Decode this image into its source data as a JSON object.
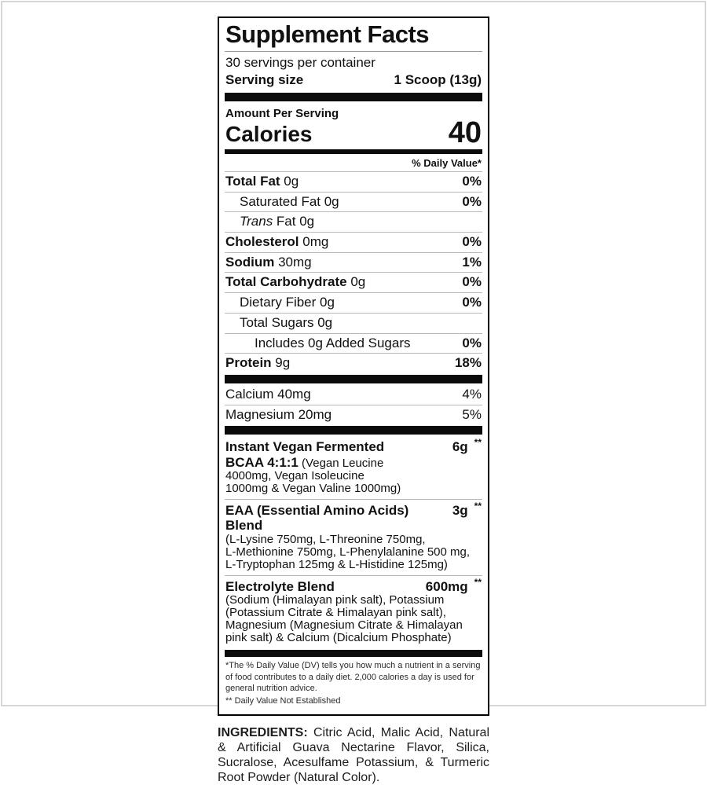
{
  "page": {
    "background": "#ffffff",
    "frame_border_color": "#d6d6d6",
    "panel_border_color": "#000000"
  },
  "label": {
    "title": "Supplement Facts",
    "servings_per_container": "30 servings per container",
    "serving_size_label": "Serving size",
    "serving_size_value": "1 Scoop (13g)",
    "amount_per_serving": "Amount Per Serving",
    "calories_label": "Calories",
    "calories_value": "40",
    "daily_value_header": "% Daily Value*",
    "nutrient_rows": [
      {
        "bold": "Total Fat",
        "rest": "0g",
        "dv": "0%",
        "indent": 0
      },
      {
        "rest": "Saturated Fat 0g",
        "dv": "0%",
        "indent": 1
      },
      {
        "italic": "Trans",
        "rest": "Fat 0g",
        "dv": "",
        "indent": 1
      },
      {
        "bold": "Cholesterol",
        "rest": "0mg",
        "dv": "0%",
        "indent": 0
      },
      {
        "bold": "Sodium",
        "rest": "30mg",
        "dv": "1%",
        "indent": 0
      },
      {
        "bold": "Total Carbohydrate",
        "rest": "0g",
        "dv": "0%",
        "indent": 0
      },
      {
        "rest": "Dietary Fiber 0g",
        "dv": "0%",
        "indent": 1
      },
      {
        "rest": "Total Sugars 0g",
        "dv": "",
        "indent": 1
      },
      {
        "rest": "Includes 0g Added Sugars",
        "dv": "0%",
        "indent": 2
      },
      {
        "bold": "Protein",
        "rest": "9g",
        "dv": "18%",
        "indent": 0
      }
    ],
    "mineral_rows": [
      {
        "rest": "Calcium 40mg",
        "dv": "4%"
      },
      {
        "rest": "Magnesium 20mg",
        "dv": "5%"
      }
    ],
    "blends": [
      {
        "name": "Instant Vegan Fermented",
        "amount": "6g",
        "dv": "**",
        "sub_bold": "BCAA 4:1:1",
        "sub_rest": " (Vegan Leucine",
        "desc_lines": [
          "4000mg, Vegan Isoleucine",
          "1000mg & Vegan Valine 1000mg)"
        ]
      },
      {
        "name": "EAA (Essential Amino Acids) Blend",
        "amount": "3g",
        "dv": "**",
        "desc_lines": [
          "(L-Lysine 750mg, L-Threonine 750mg,",
          "L-Methionine 750mg, L-Phenylalanine 500 mg,",
          "L-Tryptophan 125mg & L-Histidine 125mg)"
        ]
      },
      {
        "name": "Electrolyte Blend",
        "amount": "600mg",
        "dv": "**",
        "desc_lines": [
          "(Sodium (Himalayan pink salt), Potassium",
          "(Potassium Citrate & Himalayan pink salt),",
          "Magnesium (Magnesium Citrate & Himalayan",
          "pink salt) & Calcium (Dicalcium Phosphate)"
        ]
      }
    ],
    "footnote_dv": "*The % Daily Value (DV) tells you how much a nutrient in a serving of food contributes to a daily diet. 2,000 calories a day is used for general nutrition advice.",
    "footnote_ne": "** Daily Value Not Established"
  },
  "ingredients": {
    "label": "INGREDIENTS:",
    "text": "Citric Acid, Malic Acid, Natural & Artificial Guava Nectarine Flavor, Silica, Sucralose, Acesulfame Potassium, & Turmeric Root Powder (Natural Color)."
  }
}
